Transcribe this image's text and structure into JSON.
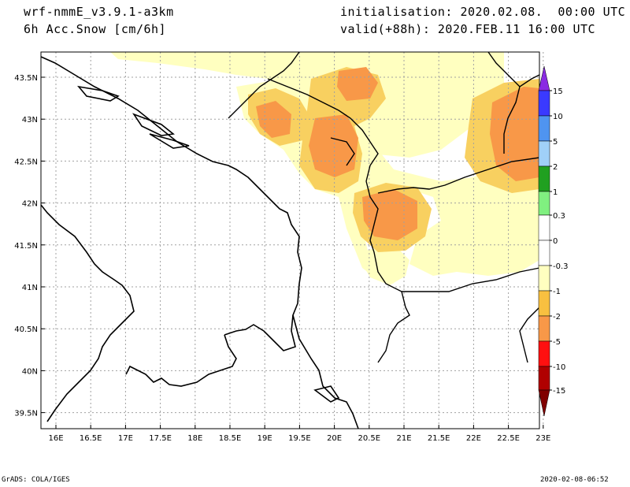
{
  "header": {
    "model": "wrf-nmmE_v3.9.1-a3km",
    "field": "6h Acc.Snow [cm/6h]",
    "init": "initialisation: 2020.02.08.  00:00 UTC",
    "valid": "valid(+88h): 2020.FEB.11 16:00 UTC"
  },
  "footer": {
    "left": "GrADS: COLA/IGES",
    "right": "2020-02-08-06:52"
  },
  "axes": {
    "lon_ticks": [
      "16E",
      "16.5E",
      "17E",
      "17.5E",
      "18E",
      "18.5E",
      "19E",
      "19.5E",
      "20E",
      "20.5E",
      "21E",
      "21.5E",
      "22E",
      "22.5E",
      "23E"
    ],
    "lat_ticks": [
      "43.5N",
      "43N",
      "42.5N",
      "42N",
      "41.5N",
      "41N",
      "40.5N",
      "40N",
      "39.5N"
    ]
  },
  "legend": {
    "labels": [
      "15",
      "10",
      "5",
      "2",
      "1",
      "0.3",
      "0",
      "-0.3",
      "-1",
      "-2",
      "-5",
      "-10",
      "-15"
    ],
    "colors": {
      "violet": "#8a2be2",
      "blue": "#3a3aff",
      "mid_blue": "#4f94f0",
      "light_blue": "#a0d0f8",
      "dark_green": "#20a020",
      "light_green": "#80f080",
      "white": "#ffffff",
      "pale_yellow": "#ffffc0",
      "gold": "#f8c040",
      "orange": "#f89848",
      "red": "#ff1010",
      "dark_red": "#b00000",
      "maroon": "#800000"
    }
  },
  "map_colors": {
    "pale_yellow": "#ffffc0",
    "gold": "#f8d060",
    "orange": "#f89848",
    "coast": "#000000",
    "grid": "#a0a0a0"
  }
}
